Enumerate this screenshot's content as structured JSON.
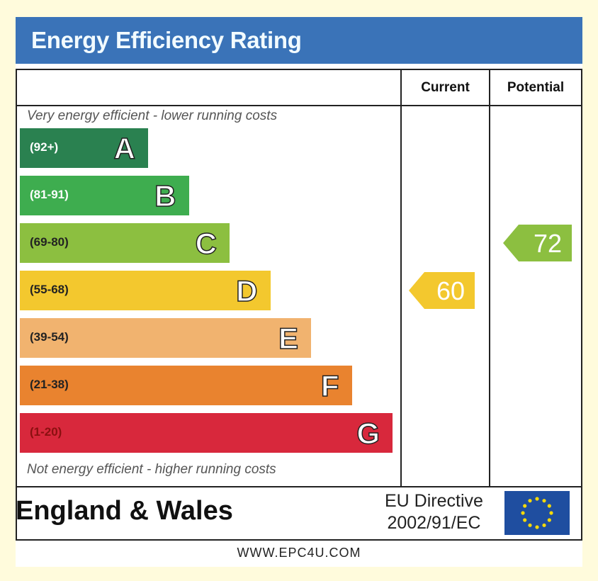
{
  "header": {
    "title": "Energy Efficiency Rating"
  },
  "columns": {
    "current": "Current",
    "potential": "Potential"
  },
  "notes": {
    "top": "Very energy efficient - lower running costs",
    "bottom": "Not energy efficient - higher running costs"
  },
  "footer": {
    "region": "England & Wales",
    "directive_line1": "EU Directive",
    "directive_line2": "2002/91/EC",
    "website": "WWW.EPC4U.COM"
  },
  "chart_data": {
    "type": "bar",
    "title": "Energy Efficiency Rating",
    "bands": [
      {
        "letter": "A",
        "range": "(92+)",
        "color": "#2a8150",
        "text_color": "#ffffff"
      },
      {
        "letter": "B",
        "range": "(81-91)",
        "color": "#3ead4f",
        "text_color": "#ffffff"
      },
      {
        "letter": "C",
        "range": "(69-80)",
        "color": "#8cbf40",
        "text_color": "#222222"
      },
      {
        "letter": "D",
        "range": "(55-68)",
        "color": "#f3c82e",
        "text_color": "#222222"
      },
      {
        "letter": "E",
        "range": "(39-54)",
        "color": "#f1b36f",
        "text_color": "#222222"
      },
      {
        "letter": "F",
        "range": "(21-38)",
        "color": "#e9832f",
        "text_color": "#222222"
      },
      {
        "letter": "G",
        "range": "(1-20)",
        "color": "#d8283c",
        "text_color": "#8a1010"
      }
    ],
    "current": {
      "value": 60,
      "band": "D",
      "color": "#f3c82e"
    },
    "potential": {
      "value": 72,
      "band": "C",
      "color": "#8cbf40"
    }
  }
}
